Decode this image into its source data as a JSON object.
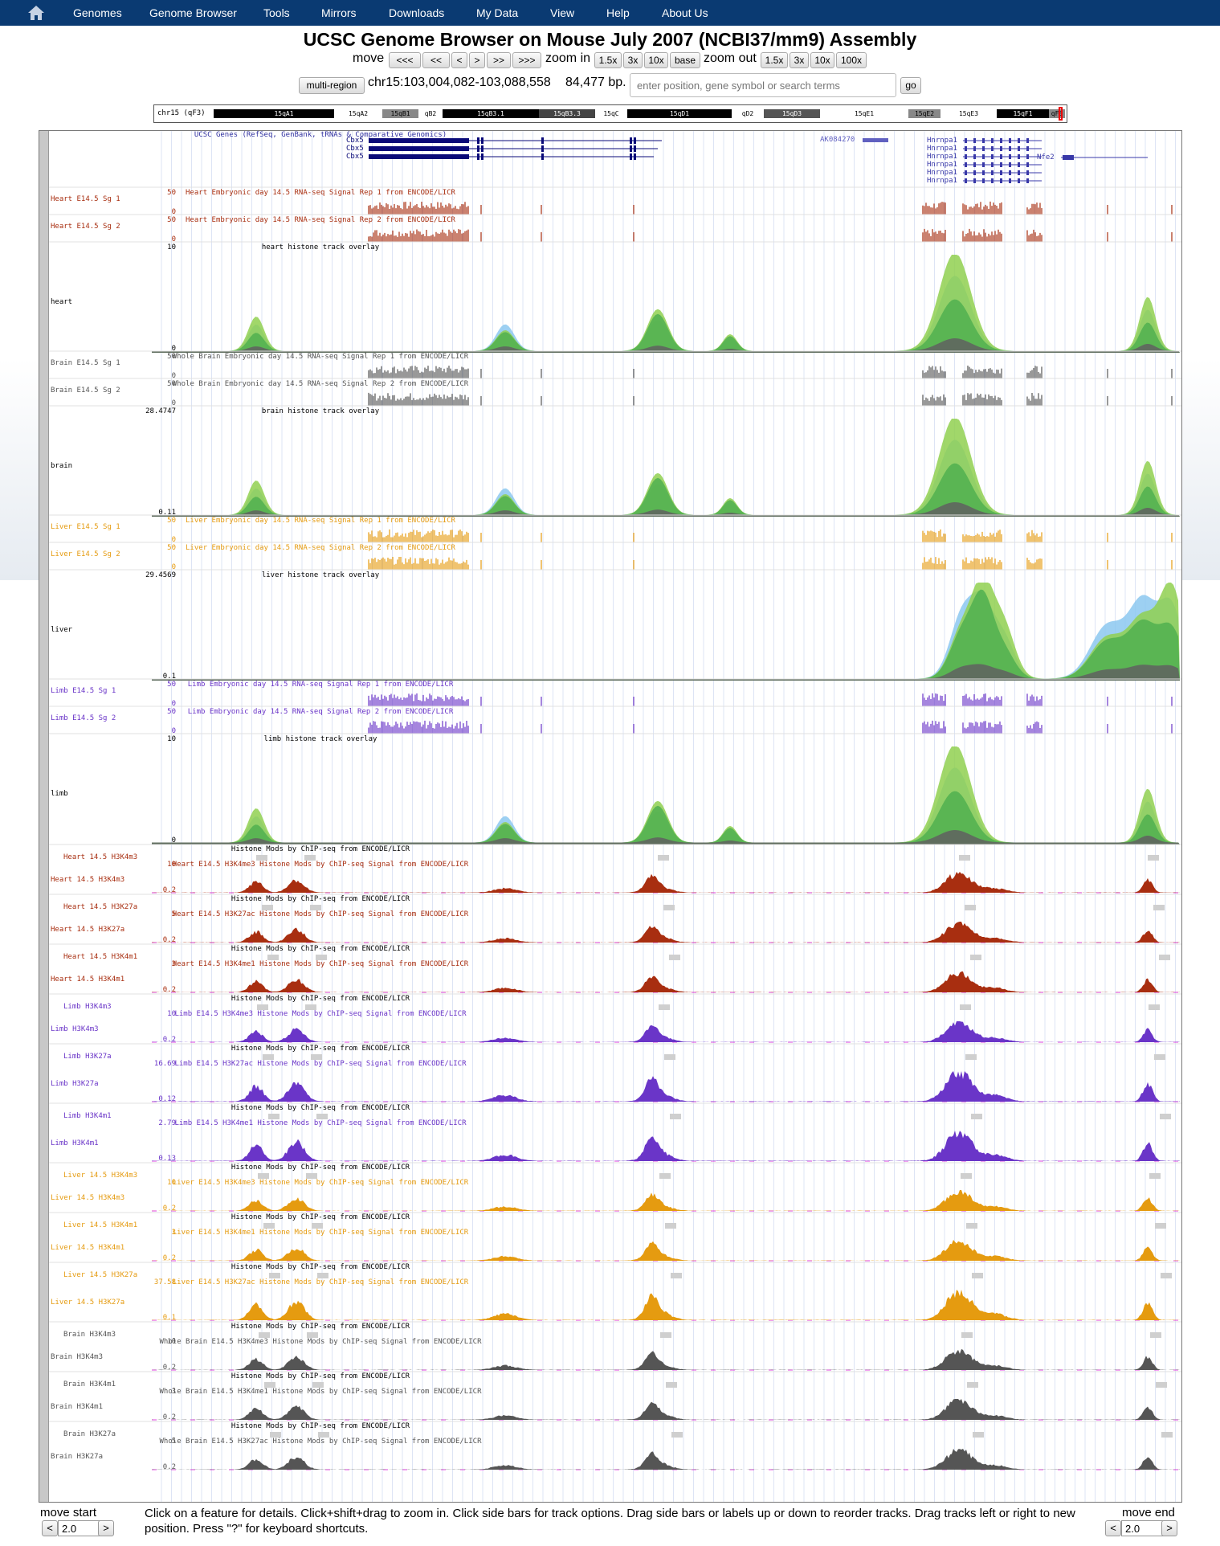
{
  "nav": {
    "items": [
      "Genomes",
      "Genome Browser",
      "Tools",
      "Mirrors",
      "Downloads",
      "My Data",
      "View",
      "Help",
      "About Us"
    ]
  },
  "title": "UCSC Genome Browser on Mouse July 2007 (NCBI37/mm9) Assembly",
  "controls": {
    "move_label": "move",
    "move_buttons": [
      "<<<",
      "<<",
      "<",
      ">",
      ">>",
      ">>>"
    ],
    "zoom_in_label": "zoom in",
    "zoom_in_buttons": [
      "1.5x",
      "3x",
      "10x",
      "base"
    ],
    "zoom_out_label": "zoom out",
    "zoom_out_buttons": [
      "1.5x",
      "3x",
      "10x",
      "100x"
    ],
    "multi_region": "multi-region",
    "position": "chr15:103,004,082-103,088,558",
    "bp": "84,477 bp.",
    "search_placeholder": "enter position, gene symbol or search terms",
    "go": "go"
  },
  "ideogram": {
    "chrom_label": "chr15 (qF3)",
    "bands": [
      "15qA1",
      "15qA2",
      "15qB1",
      "qB2",
      "15qB3.1",
      "15qB3.3",
      "15qC",
      "15qD1",
      "qD2",
      "15qD3",
      "15qE1",
      "15qE2",
      "15qE3",
      "15qF1",
      "qF3"
    ]
  },
  "genes": {
    "title": "UCSC Genes (RefSeq, GenBank, tRNAs & Comparative Genomics)",
    "names": [
      "Cbx5",
      "Cbx5",
      "Cbx5",
      "AK084270",
      "Hnrnpa1",
      "Hnrnpa1",
      "Hnrnpa1",
      "Hnrnpa1",
      "Hnrnpa1",
      "Hnrnpa1",
      "Nfe2"
    ]
  },
  "tracks": [
    {
      "label": "Heart E14.5 Sg 1",
      "title": "Heart Embryonic day 14.5 RNA-seq Signal Rep 1 from ENCODE/LICR",
      "max": "50",
      "min": "0",
      "color": "#a82e10"
    },
    {
      "label": "Heart E14.5 Sg 2",
      "title": "Heart Embryonic day 14.5 RNA-seq Signal Rep 2 from ENCODE/LICR",
      "max": "50",
      "min": "0",
      "color": "#a82e10"
    },
    {
      "label": "heart",
      "title": "heart histone track overlay",
      "max": "10",
      "min": "0",
      "color": "#000000"
    },
    {
      "label": "Brain E14.5 Sg 1",
      "title": "Whole Brain Embryonic day 14.5 RNA-seq Signal Rep 1 from ENCODE/LICR",
      "max": "50",
      "min": "0",
      "color": "#555555"
    },
    {
      "label": "Brain E14.5 Sg 2",
      "title": "Whole Brain Embryonic day 14.5 RNA-seq Signal Rep 2 from ENCODE/LICR",
      "max": "50",
      "min": "0",
      "color": "#555555"
    },
    {
      "label": "brain",
      "title": "brain histone track overlay",
      "max": "28.4747",
      "min": "0.11",
      "color": "#000000"
    },
    {
      "label": "Liver E14.5 Sg 1",
      "title": "Liver Embryonic day 14.5 RNA-seq Signal Rep 1 from ENCODE/LICR",
      "max": "50",
      "min": "0",
      "color": "#e59b10"
    },
    {
      "label": "Liver E14.5 Sg 2",
      "title": "Liver Embryonic day 14.5 RNA-seq Signal Rep 2 from ENCODE/LICR",
      "max": "50",
      "min": "0",
      "color": "#e59b10"
    },
    {
      "label": "liver",
      "title": "liver histone track overlay",
      "max": "29.4569",
      "min": "0.1",
      "color": "#000000"
    },
    {
      "label": "Limb E14.5 Sg 1",
      "title": "Limb Embryonic day 14.5 RNA-seq Signal Rep 1 from ENCODE/LICR",
      "max": "50",
      "min": "0",
      "color": "#6a35c8"
    },
    {
      "label": "Limb E14.5 Sg 2",
      "title": "Limb Embryonic day 14.5 RNA-seq Signal Rep 2 from ENCODE/LICR",
      "max": "50",
      "min": "0",
      "color": "#6a35c8"
    },
    {
      "label": "limb",
      "title": "limb histone track overlay",
      "max": "10",
      "min": "0",
      "color": "#000000"
    }
  ],
  "histone_header": "Histone Mods by ChIP-seq from ENCODE/LICR",
  "histone_tracks": [
    {
      "peak_label": "Heart 14.5 H3K4m3",
      "label": "Heart 14.5 H3K4m3",
      "title": "Heart E14.5 H3K4me3 Histone Mods by ChIP-seq Signal from ENCODE/LICR",
      "max": "10",
      "min": "0.2",
      "color": "#a82e10"
    },
    {
      "peak_label": "Heart 14.5 H3K27a",
      "label": "Heart 14.5 H3K27a",
      "title": "Heart E14.5 H3K27ac Histone Mods by ChIP-seq Signal from ENCODE/LICR",
      "max": "5",
      "min": "0.2",
      "color": "#a82e10"
    },
    {
      "peak_label": "Heart 14.5 H3K4m1",
      "label": "Heart 14.5 H3K4m1",
      "title": "Heart E14.5 H3K4me1 Histone Mods by ChIP-seq Signal from ENCODE/LICR",
      "max": "3",
      "min": "0.2",
      "color": "#a82e10"
    },
    {
      "peak_label": "Limb H3K4m3",
      "label": "Limb H3K4m3",
      "title": "Limb E14.5 H3K4me3 Histone Mods by ChIP-seq Signal from ENCODE/LICR",
      "max": "10",
      "min": "0.2",
      "color": "#6a35c8"
    },
    {
      "peak_label": "Limb H3K27a",
      "label": "Limb H3K27a",
      "title": "Limb E14.5 H3K27ac Histone Mods by ChIP-seq Signal from ENCODE/LICR",
      "max": "16.69",
      "min": "0.12",
      "color": "#6a35c8"
    },
    {
      "peak_label": "Limb H3K4m1",
      "label": "Limb H3K4m1",
      "title": "Limb E14.5 H3K4me1 Histone Mods by ChIP-seq Signal from ENCODE/LICR",
      "max": "2.79",
      "min": "0.13",
      "color": "#6a35c8"
    },
    {
      "peak_label": "Liver 14.5 H3K4m3",
      "label": "Liver 14.5 H3K4m3",
      "title": "Liver E14.5 H3K4me3 Histone Mods by ChIP-seq Signal from ENCODE/LICR",
      "max": "10",
      "min": "0.2",
      "color": "#e59b10"
    },
    {
      "peak_label": "Liver 14.5 H3K4m1",
      "label": "Liver 14.5 H3K4m1",
      "title": "Liver E14.5 H3K4me1 Histone Mods by ChIP-seq Signal from ENCODE/LICR",
      "max": "3",
      "min": "0.2",
      "color": "#e59b10"
    },
    {
      "peak_label": "Liver 14.5 H3K27a",
      "label": "Liver 14.5 H3K27a",
      "title": "Liver E14.5 H3K27ac Histone Mods by ChIP-seq Signal from ENCODE/LICR",
      "max": "37.58",
      "min": "0.1",
      "color": "#e59b10"
    },
    {
      "peak_label": "Brain H3K4m3",
      "label": "Brain H3K4m3",
      "title": "Whole Brain E14.5 H3K4me3 Histone Mods by ChIP-seq Signal from ENCODE/LICR",
      "max": "10",
      "min": "0.2",
      "color": "#555555"
    },
    {
      "peak_label": "Brain H3K4m1",
      "label": "Brain H3K4m1",
      "title": "Whole Brain E14.5 H3K4me1 Histone Mods by ChIP-seq Signal from ENCODE/LICR",
      "max": "3",
      "min": "0.2",
      "color": "#555555"
    },
    {
      "peak_label": "Brain H3K27a",
      "label": "Brain H3K27a",
      "title": "Whole Brain E14.5 H3K27ac Histone Mods by ChIP-seq Signal from ENCODE/LICR",
      "max": "5",
      "min": "0.2",
      "color": "#555555"
    }
  ],
  "bottom": {
    "move_start": "move start",
    "move_end": "move end",
    "help": "Click on a feature for details. Click+shift+drag to zoom in. Click side bars for track options. Drag side bars or labels up or down to reorder tracks. Drag tracks left or right to new position. Press \"?\" for keyboard shortcuts.",
    "start_value": "2.0",
    "end_value": "2.0",
    "left_arrow": "<",
    "right_arrow": ">"
  }
}
